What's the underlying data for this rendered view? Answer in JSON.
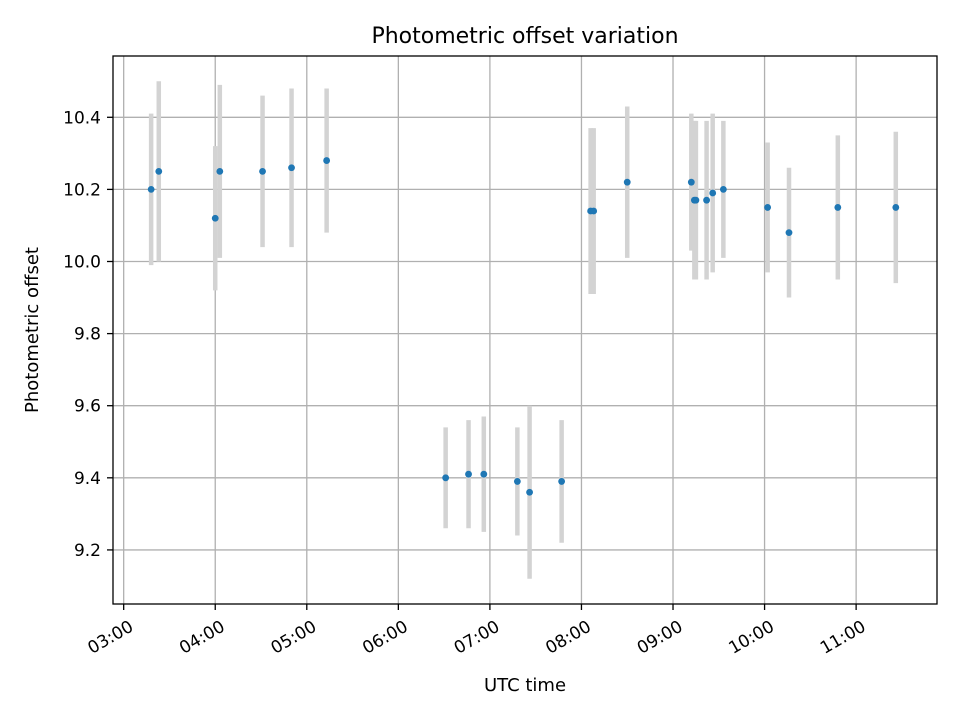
{
  "chart_data": {
    "type": "scatter",
    "title": "Photometric offset variation",
    "xlabel": "UTC time",
    "ylabel": "Photometric offset",
    "x_axis": "time",
    "xlim": [
      "02:53",
      "11:53"
    ],
    "ylim": [
      9.05,
      10.57
    ],
    "xticks": [
      "03:00",
      "04:00",
      "05:00",
      "06:00",
      "07:00",
      "08:00",
      "09:00",
      "10:00",
      "11:00"
    ],
    "yticks": [
      9.2,
      9.4,
      9.6,
      9.8,
      10.0,
      10.2,
      10.4
    ],
    "ytick_labels": [
      "9.2",
      "9.4",
      "9.6",
      "9.8",
      "10.0",
      "10.2",
      "10.4"
    ],
    "grid": true,
    "point_color": "#1f77b4",
    "errorbar_color": "#d3d3d3",
    "series": [
      {
        "points": [
          {
            "t": "03:18",
            "y": 10.2,
            "err": 0.21
          },
          {
            "t": "03:23",
            "y": 10.25,
            "err": 0.25
          },
          {
            "t": "04:00",
            "y": 10.12,
            "err": 0.2
          },
          {
            "t": "04:03",
            "y": 10.25,
            "err": 0.24
          },
          {
            "t": "04:31",
            "y": 10.25,
            "err": 0.21
          },
          {
            "t": "04:50",
            "y": 10.26,
            "err": 0.22
          },
          {
            "t": "05:13",
            "y": 10.28,
            "err": 0.2
          },
          {
            "t": "06:31",
            "y": 9.4,
            "err": 0.14
          },
          {
            "t": "06:46",
            "y": 9.41,
            "err": 0.15
          },
          {
            "t": "06:56",
            "y": 9.41,
            "err": 0.16
          },
          {
            "t": "07:18",
            "y": 9.39,
            "err": 0.15
          },
          {
            "t": "07:26",
            "y": 9.36,
            "err": 0.24
          },
          {
            "t": "07:47",
            "y": 9.39,
            "err": 0.17
          },
          {
            "t": "08:06",
            "y": 10.14,
            "err": 0.23
          },
          {
            "t": "08:08",
            "y": 10.14,
            "err": 0.23
          },
          {
            "t": "08:30",
            "y": 10.22,
            "err": 0.21
          },
          {
            "t": "09:12",
            "y": 10.22,
            "err": 0.19
          },
          {
            "t": "09:14",
            "y": 10.17,
            "err": 0.22
          },
          {
            "t": "09:15",
            "y": 10.17,
            "err": 0.22
          },
          {
            "t": "09:22",
            "y": 10.17,
            "err": 0.22
          },
          {
            "t": "09:26",
            "y": 10.19,
            "err": 0.22
          },
          {
            "t": "09:33",
            "y": 10.2,
            "err": 0.19
          },
          {
            "t": "10:02",
            "y": 10.15,
            "err": 0.18
          },
          {
            "t": "10:16",
            "y": 10.08,
            "err": 0.18
          },
          {
            "t": "10:48",
            "y": 10.15,
            "err": 0.2
          },
          {
            "t": "11:26",
            "y": 10.15,
            "err": 0.21
          }
        ]
      }
    ]
  }
}
